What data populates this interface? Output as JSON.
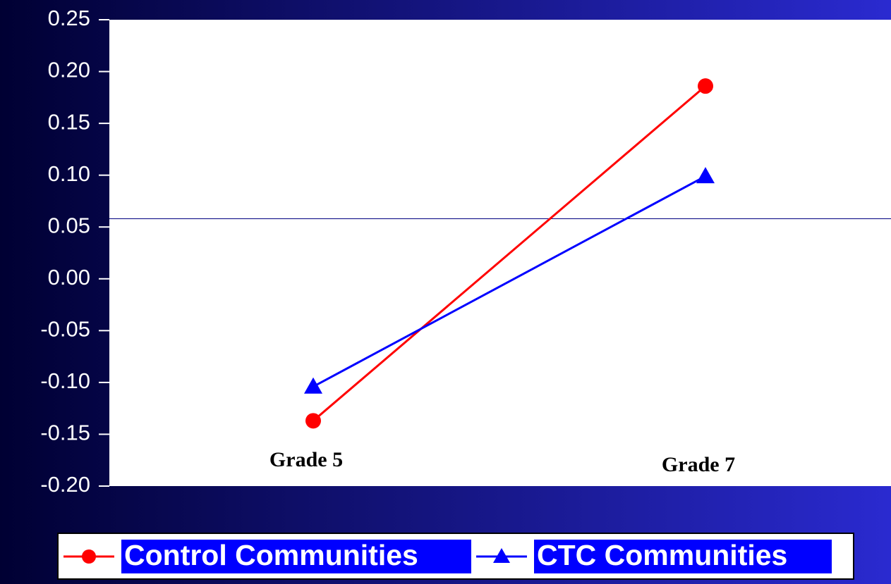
{
  "chart_data": {
    "type": "line",
    "categories": [
      "Grade 5",
      "Grade 7"
    ],
    "series": [
      {
        "name": "Control Communities",
        "color": "#ff0000",
        "marker": "circle",
        "values": [
          -0.137,
          0.186
        ]
      },
      {
        "name": "CTC Communities",
        "color": "#0000ff",
        "marker": "triangle",
        "values": [
          -0.104,
          0.099
        ]
      }
    ],
    "ylim": [
      -0.2,
      0.25
    ],
    "yticks": [
      {
        "value": -0.2,
        "label": "-0.20"
      },
      -0.15,
      {
        "value": -0.1,
        "label": "-0.10"
      },
      -0.05,
      {
        "value": 0,
        "label": "0.00"
      },
      0.05,
      {
        "value": 0.1,
        "label": "0.10"
      },
      0.15,
      {
        "value": 0.2,
        "label": "0.20"
      },
      0.25
    ],
    "reference_line": 0.058,
    "legend": "bottom"
  }
}
